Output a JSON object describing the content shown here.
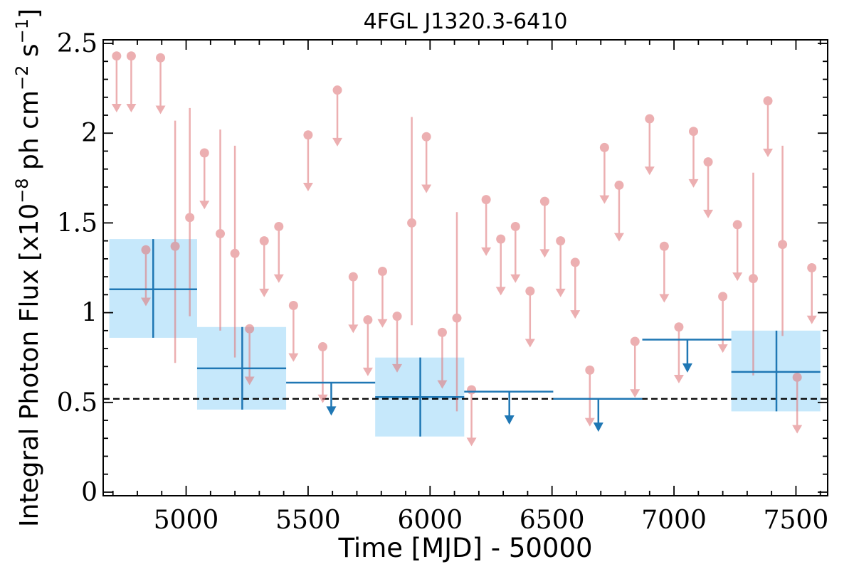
{
  "chart_data": {
    "type": "scatter",
    "title": "4FGL J1320.3-6410",
    "xlabel": "Time [MJD] - 50000",
    "ylabel": {
      "prefix": "Integral Photon Flux [x10",
      "exp1": "−8",
      "middle": " ph cm",
      "exp2": "−2",
      "middle2": " s",
      "exp3": "−1",
      "suffix": "]"
    },
    "xlim": [
      4660,
      7630
    ],
    "ylim": [
      -0.02,
      2.52
    ],
    "x_ticks": [
      5000,
      5500,
      6000,
      6500,
      7000,
      7500
    ],
    "x_tick_labels": [
      "5000",
      "5500",
      "6000",
      "6500",
      "7000",
      "7500"
    ],
    "y_ticks": [
      0,
      0.5,
      1,
      1.5,
      2,
      2.5
    ],
    "y_tick_labels": [
      "0",
      "0.5",
      "1",
      "1.5",
      "2",
      "2.5"
    ],
    "grid": false,
    "reference_line": {
      "y": 0.52,
      "style": "dashed"
    },
    "colors": {
      "fine_bins": "#e07b7e",
      "coarse_bins": "#1f77b4",
      "coarse_band": "#c6e8fb",
      "reference": "#000000"
    },
    "series": [
      {
        "points": [
          {
            "x": 4715,
            "y": 2.43,
            "ul": true,
            "arrow_to": 2.12
          },
          {
            "x": 4775,
            "y": 2.43,
            "ul": true,
            "arrow_to": 2.12
          },
          {
            "x": 4895,
            "y": 2.42,
            "ul": true,
            "arrow_to": 2.11
          },
          {
            "x": 4835,
            "y": 1.35,
            "ul": true,
            "arrow_to": 1.04
          },
          {
            "x": 4955,
            "y": 1.37,
            "yerr_lo": 0.65,
            "yerr_hi": 0.7
          },
          {
            "x": 5015,
            "y": 1.53,
            "yerr_lo": 0.55,
            "yerr_hi": 0.61
          },
          {
            "x": 5075,
            "y": 1.89,
            "ul": true,
            "arrow_to": 1.58
          },
          {
            "x": 5140,
            "y": 1.44,
            "yerr_lo": 0.54,
            "yerr_hi": 0.58
          },
          {
            "x": 5200,
            "y": 1.33,
            "yerr_lo": 0.58,
            "yerr_hi": 0.6
          },
          {
            "x": 5260,
            "y": 0.91,
            "ul": true,
            "arrow_to": 0.6
          },
          {
            "x": 5320,
            "y": 1.4,
            "ul": true,
            "arrow_to": 1.09
          },
          {
            "x": 5380,
            "y": 1.48,
            "ul": true,
            "arrow_to": 1.17
          },
          {
            "x": 5440,
            "y": 1.04,
            "ul": true,
            "arrow_to": 0.73
          },
          {
            "x": 5500,
            "y": 1.99,
            "ul": true,
            "arrow_to": 1.68
          },
          {
            "x": 5560,
            "y": 0.81,
            "ul": true,
            "arrow_to": 0.5
          },
          {
            "x": 5620,
            "y": 2.24,
            "ul": true,
            "arrow_to": 1.93
          },
          {
            "x": 5685,
            "y": 1.2,
            "ul": true,
            "arrow_to": 0.89
          },
          {
            "x": 5745,
            "y": 0.96,
            "ul": true,
            "arrow_to": 0.65
          },
          {
            "x": 5805,
            "y": 1.23,
            "ul": true,
            "arrow_to": 0.92
          },
          {
            "x": 5865,
            "y": 0.98,
            "ul": true,
            "arrow_to": 0.67
          },
          {
            "x": 5925,
            "y": 1.5,
            "yerr_lo": 0.57,
            "yerr_hi": 0.59
          },
          {
            "x": 5985,
            "y": 1.98,
            "ul": true,
            "arrow_to": 1.67
          },
          {
            "x": 6050,
            "y": 0.89,
            "ul": true,
            "arrow_to": 0.58
          },
          {
            "x": 6110,
            "y": 0.97,
            "yerr_lo": 0.52,
            "yerr_hi": 0.59
          },
          {
            "x": 6170,
            "y": 0.57,
            "ul": true,
            "arrow_to": 0.26
          },
          {
            "x": 6230,
            "y": 1.63,
            "ul": true,
            "arrow_to": 1.32
          },
          {
            "x": 6290,
            "y": 1.41,
            "ul": true,
            "arrow_to": 1.1
          },
          {
            "x": 6350,
            "y": 1.48,
            "ul": true,
            "arrow_to": 1.17
          },
          {
            "x": 6410,
            "y": 1.12,
            "ul": true,
            "arrow_to": 0.81
          },
          {
            "x": 6470,
            "y": 1.62,
            "ul": true,
            "arrow_to": 1.31
          },
          {
            "x": 6535,
            "y": 1.4,
            "ul": true,
            "arrow_to": 1.09
          },
          {
            "x": 6595,
            "y": 1.28,
            "ul": true,
            "arrow_to": 0.97
          },
          {
            "x": 6655,
            "y": 0.68,
            "ul": true,
            "arrow_to": 0.37
          },
          {
            "x": 6715,
            "y": 1.92,
            "ul": true,
            "arrow_to": 1.61
          },
          {
            "x": 6775,
            "y": 1.71,
            "ul": true,
            "arrow_to": 1.4
          },
          {
            "x": 6840,
            "y": 0.84,
            "ul": true,
            "arrow_to": 0.53
          },
          {
            "x": 6900,
            "y": 2.08,
            "ul": true,
            "arrow_to": 1.77
          },
          {
            "x": 6960,
            "y": 1.37,
            "ul": true,
            "arrow_to": 1.06
          },
          {
            "x": 7020,
            "y": 0.92,
            "ul": true,
            "arrow_to": 0.61
          },
          {
            "x": 7080,
            "y": 2.01,
            "ul": true,
            "arrow_to": 1.7
          },
          {
            "x": 7140,
            "y": 1.84,
            "ul": true,
            "arrow_to": 1.53
          },
          {
            "x": 7200,
            "y": 1.09,
            "ul": true,
            "arrow_to": 0.78
          },
          {
            "x": 7260,
            "y": 1.49,
            "ul": true,
            "arrow_to": 1.18
          },
          {
            "x": 7325,
            "y": 1.19,
            "yerr_lo": 0.54,
            "yerr_hi": 0.59
          },
          {
            "x": 7385,
            "y": 2.18,
            "ul": true,
            "arrow_to": 1.87
          },
          {
            "x": 7445,
            "y": 1.38,
            "yerr_lo": 0.51,
            "yerr_hi": 0.55
          },
          {
            "x": 7505,
            "y": 0.64,
            "ul": true,
            "arrow_to": 0.33
          },
          {
            "x": 7565,
            "y": 1.25,
            "ul": true,
            "arrow_to": 0.94
          }
        ]
      },
      {
        "points": [
          {
            "x": 4865,
            "x0": 4685,
            "x1": 5045,
            "y": 1.13,
            "y_lo": 0.86,
            "y_hi": 1.41
          },
          {
            "x": 5230,
            "x0": 5045,
            "x1": 5410,
            "y": 0.69,
            "y_lo": 0.46,
            "y_hi": 0.92
          },
          {
            "x": 5595,
            "x0": 5410,
            "x1": 5775,
            "y": 0.61,
            "ul": true,
            "arrow_to": 0.43
          },
          {
            "x": 5960,
            "x0": 5775,
            "x1": 6140,
            "y": 0.53,
            "y_lo": 0.31,
            "y_hi": 0.75
          },
          {
            "x": 6325,
            "x0": 6140,
            "x1": 6505,
            "y": 0.56,
            "ul": true,
            "arrow_to": 0.38
          },
          {
            "x": 6690,
            "x0": 6505,
            "x1": 6870,
            "y": 0.52,
            "ul": true,
            "arrow_to": 0.34
          },
          {
            "x": 7055,
            "x0": 6870,
            "x1": 7235,
            "y": 0.85,
            "ul": true,
            "arrow_to": 0.67
          },
          {
            "x": 7420,
            "x0": 7235,
            "x1": 7600,
            "y": 0.67,
            "y_lo": 0.45,
            "y_hi": 0.9
          }
        ]
      }
    ]
  }
}
